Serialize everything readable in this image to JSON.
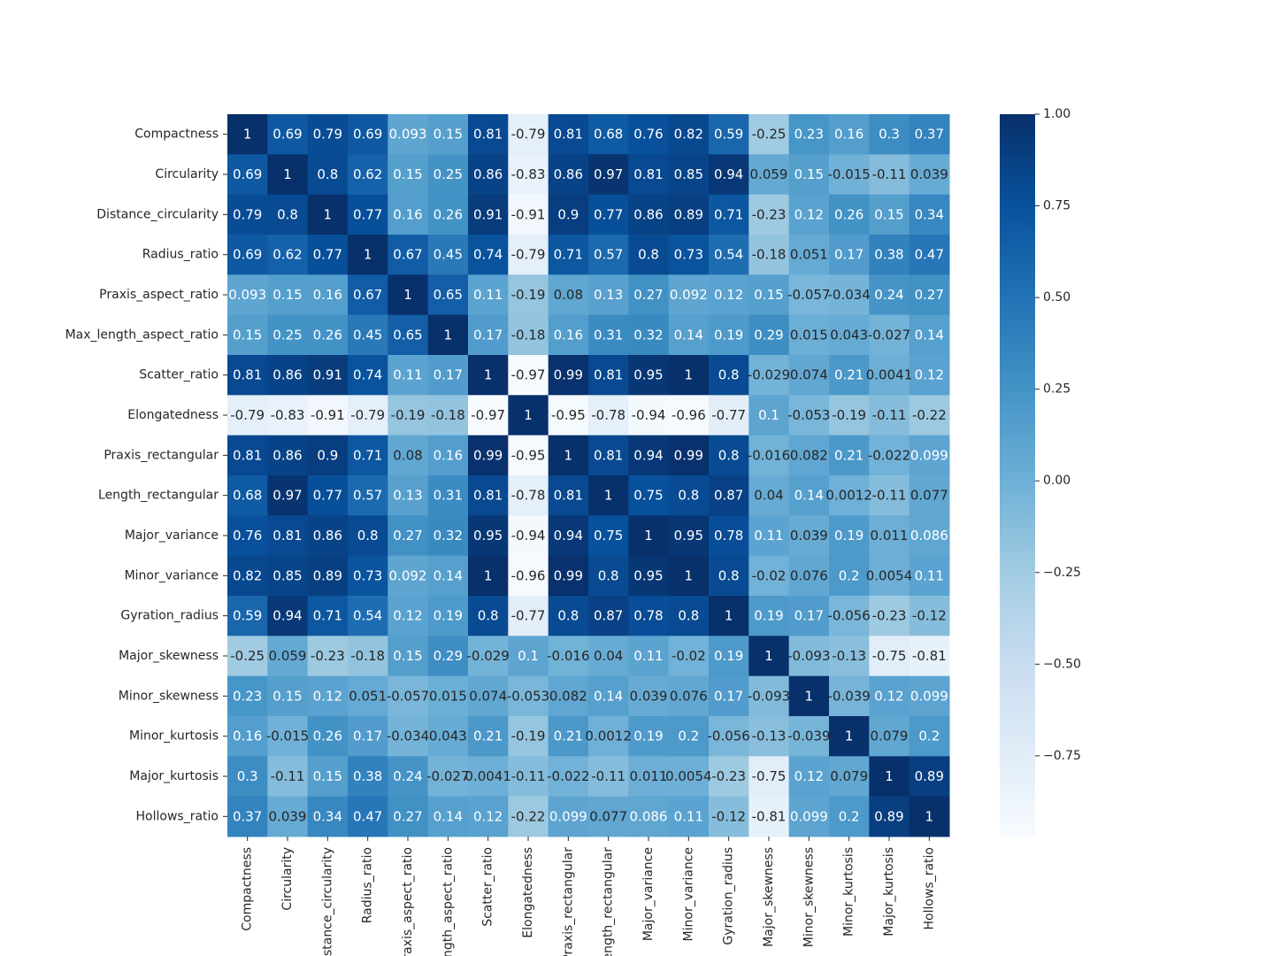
{
  "chart_data": {
    "type": "heatmap",
    "title": "",
    "xlabel": "",
    "ylabel": "",
    "colormap": "Blues",
    "colormap_stops": [
      "#f7fbff",
      "#deebf7",
      "#c6dbef",
      "#9ecae1",
      "#6baed6",
      "#4292c6",
      "#2171b5",
      "#08519c",
      "#08306b"
    ],
    "value_range": [
      -0.97,
      1.0
    ],
    "labels": [
      "Compactness",
      "Circularity",
      "Distance_circularity",
      "Radius_ratio",
      "Praxis_aspect_ratio",
      "Max_length_aspect_ratio",
      "Scatter_ratio",
      "Elongatedness",
      "Praxis_rectangular",
      "Length_rectangular",
      "Major_variance",
      "Minor_variance",
      "Gyration_radius",
      "Major_skewness",
      "Minor_skewness",
      "Minor_kurtosis",
      "Major_kurtosis",
      "Hollows_ratio"
    ],
    "colorbar_ticks": [
      1.0,
      0.75,
      0.5,
      0.25,
      0.0,
      -0.25,
      -0.5,
      -0.75
    ],
    "colorbar_tick_labels": [
      "1.00",
      "0.75",
      "0.50",
      "0.25",
      "0.00",
      "−0.25",
      "−0.50",
      "−0.75"
    ],
    "annotations": [
      [
        "1",
        "0.69",
        "0.79",
        "0.69",
        "0.093",
        "0.15",
        "0.81",
        "-0.79",
        "0.81",
        "0.68",
        "0.76",
        "0.82",
        "0.59",
        "-0.25",
        "0.23",
        "0.16",
        "0.3",
        "0.37"
      ],
      [
        "0.69",
        "1",
        "0.8",
        "0.62",
        "0.15",
        "0.25",
        "0.86",
        "-0.83",
        "0.86",
        "0.97",
        "0.81",
        "0.85",
        "0.94",
        "0.059",
        "0.15",
        "-0.015",
        "-0.11",
        "0.039"
      ],
      [
        "0.79",
        "0.8",
        "1",
        "0.77",
        "0.16",
        "0.26",
        "0.91",
        "-0.91",
        "0.9",
        "0.77",
        "0.86",
        "0.89",
        "0.71",
        "-0.23",
        "0.12",
        "0.26",
        "0.15",
        "0.34"
      ],
      [
        "0.69",
        "0.62",
        "0.77",
        "1",
        "0.67",
        "0.45",
        "0.74",
        "-0.79",
        "0.71",
        "0.57",
        "0.8",
        "0.73",
        "0.54",
        "-0.18",
        "0.051",
        "0.17",
        "0.38",
        "0.47"
      ],
      [
        "0.093",
        "0.15",
        "0.16",
        "0.67",
        "1",
        "0.65",
        "0.11",
        "-0.19",
        "0.08",
        "0.13",
        "0.27",
        "0.092",
        "0.12",
        "0.15",
        "-0.057",
        "-0.034",
        "0.24",
        "0.27"
      ],
      [
        "0.15",
        "0.25",
        "0.26",
        "0.45",
        "0.65",
        "1",
        "0.17",
        "-0.18",
        "0.16",
        "0.31",
        "0.32",
        "0.14",
        "0.19",
        "0.29",
        "0.015",
        "0.043",
        "-0.027",
        "0.14"
      ],
      [
        "0.81",
        "0.86",
        "0.91",
        "0.74",
        "0.11",
        "0.17",
        "1",
        "-0.97",
        "0.99",
        "0.81",
        "0.95",
        "1",
        "0.8",
        "-0.029",
        "0.074",
        "0.21",
        "0.0041",
        "0.12"
      ],
      [
        "-0.79",
        "-0.83",
        "-0.91",
        "-0.79",
        "-0.19",
        "-0.18",
        "-0.97",
        "1",
        "-0.95",
        "-0.78",
        "-0.94",
        "-0.96",
        "-0.77",
        "0.1",
        "-0.053",
        "-0.19",
        "-0.11",
        "-0.22"
      ],
      [
        "0.81",
        "0.86",
        "0.9",
        "0.71",
        "0.08",
        "0.16",
        "0.99",
        "-0.95",
        "1",
        "0.81",
        "0.94",
        "0.99",
        "0.8",
        "-0.016",
        "0.082",
        "0.21",
        "-0.022",
        "0.099"
      ],
      [
        "0.68",
        "0.97",
        "0.77",
        "0.57",
        "0.13",
        "0.31",
        "0.81",
        "-0.78",
        "0.81",
        "1",
        "0.75",
        "0.8",
        "0.87",
        "0.04",
        "0.14",
        "0.0012",
        "-0.11",
        "0.077"
      ],
      [
        "0.76",
        "0.81",
        "0.86",
        "0.8",
        "0.27",
        "0.32",
        "0.95",
        "-0.94",
        "0.94",
        "0.75",
        "1",
        "0.95",
        "0.78",
        "0.11",
        "0.039",
        "0.19",
        "0.011",
        "0.086"
      ],
      [
        "0.82",
        "0.85",
        "0.89",
        "0.73",
        "0.092",
        "0.14",
        "1",
        "-0.96",
        "0.99",
        "0.8",
        "0.95",
        "1",
        "0.8",
        "-0.02",
        "0.076",
        "0.2",
        "0.0054",
        "0.11"
      ],
      [
        "0.59",
        "0.94",
        "0.71",
        "0.54",
        "0.12",
        "0.19",
        "0.8",
        "-0.77",
        "0.8",
        "0.87",
        "0.78",
        "0.8",
        "1",
        "0.19",
        "0.17",
        "-0.056",
        "-0.23",
        "-0.12"
      ],
      [
        "-0.25",
        "0.059",
        "-0.23",
        "-0.18",
        "0.15",
        "0.29",
        "-0.029",
        "0.1",
        "-0.016",
        "0.04",
        "0.11",
        "-0.02",
        "0.19",
        "1",
        "-0.093",
        "-0.13",
        "-0.75",
        "-0.81"
      ],
      [
        "0.23",
        "0.15",
        "0.12",
        "0.051",
        "-0.057",
        "0.015",
        "0.074",
        "-0.053",
        "0.082",
        "0.14",
        "0.039",
        "0.076",
        "0.17",
        "-0.093",
        "1",
        "-0.039",
        "0.12",
        "0.099"
      ],
      [
        "0.16",
        "-0.015",
        "0.26",
        "0.17",
        "-0.034",
        "0.043",
        "0.21",
        "-0.19",
        "0.21",
        "0.0012",
        "0.19",
        "0.2",
        "-0.056",
        "-0.13",
        "-0.039",
        "1",
        "0.079",
        "0.2"
      ],
      [
        "0.3",
        "-0.11",
        "0.15",
        "0.38",
        "0.24",
        "-0.027",
        "0.0041",
        "-0.11",
        "-0.022",
        "-0.11",
        "0.011",
        "0.0054",
        "-0.23",
        "-0.75",
        "0.12",
        "0.079",
        "1",
        "0.89"
      ],
      [
        "0.37",
        "0.039",
        "0.34",
        "0.47",
        "0.27",
        "0.14",
        "0.12",
        "-0.22",
        "0.099",
        "0.077",
        "0.086",
        "0.11",
        "-0.12",
        "-0.81",
        "0.099",
        "0.2",
        "0.89",
        "1"
      ]
    ]
  }
}
